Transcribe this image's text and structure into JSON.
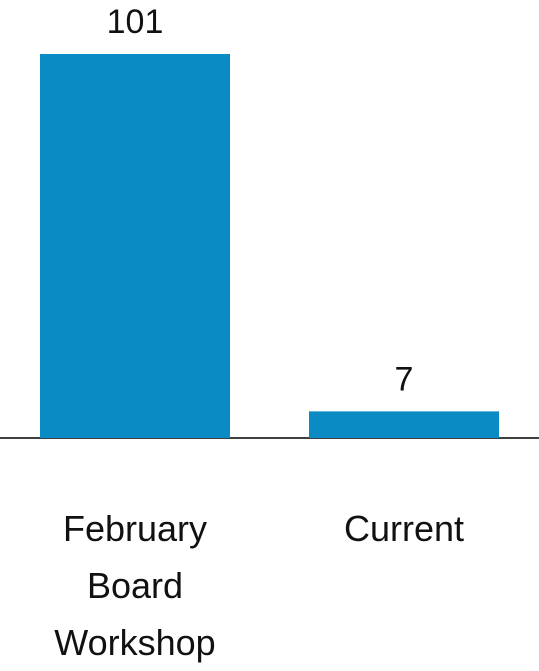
{
  "chart_data": {
    "type": "bar",
    "categories": [
      "February Board Workshop",
      "Current"
    ],
    "values": [
      101,
      7
    ],
    "color": "#0a8bc4"
  }
}
